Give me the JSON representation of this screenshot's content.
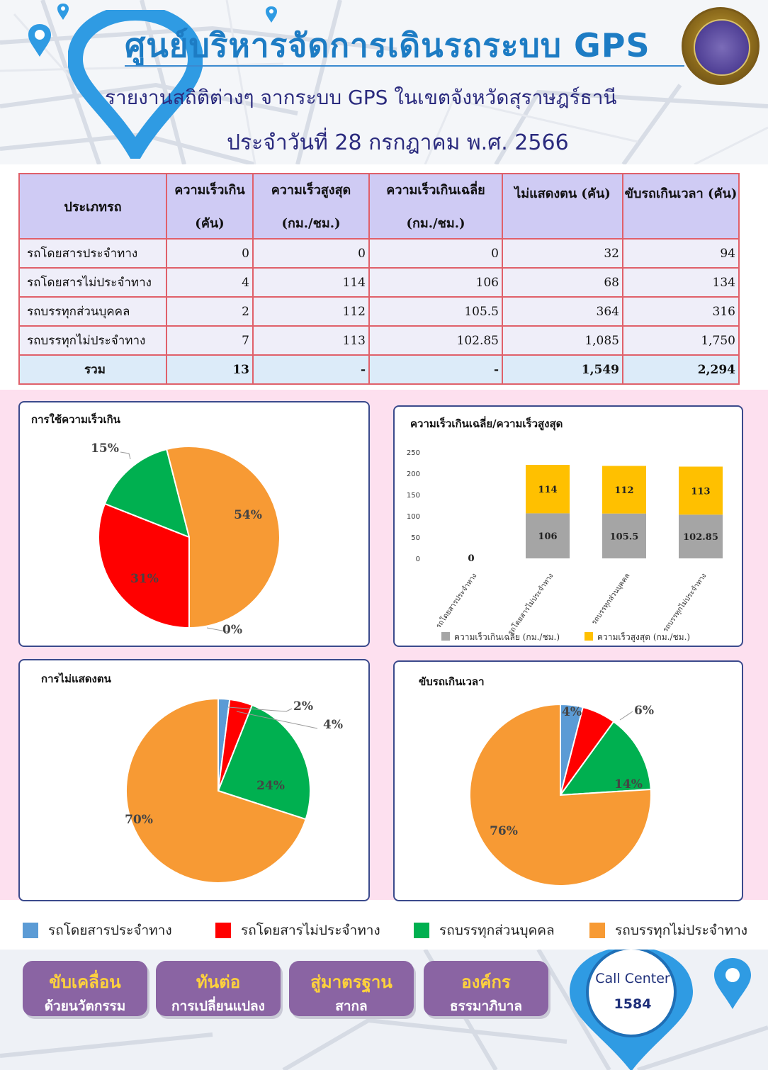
{
  "header": {
    "title": "ศูนย์บริหารจัดการเดินรถระบบ GPS",
    "subtitle": "รายงานสถิติต่างๆ จากระบบ GPS ในเขตจังหวัดสุราษฎร์ธานี",
    "date": "ประจำวันที่  28  กรกฎาคม   พ.ศ. 2566"
  },
  "table": {
    "headers": [
      {
        "l1": "ประเภทรถ",
        "l2": ""
      },
      {
        "l1": "ความเร็วเกิน",
        "l2": "(คัน)"
      },
      {
        "l1": "ความเร็วสูงสุด",
        "l2": "(กม./ชม.)"
      },
      {
        "l1": "ความเร็วเกินเฉลี่ย",
        "l2": "(กม./ชม.)"
      },
      {
        "l1": "ไม่แสดงตน (คัน)",
        "l2": ""
      },
      {
        "l1": "ขับรถเกินเวลา (คัน)",
        "l2": ""
      }
    ],
    "rows": [
      [
        "รถโดยสารประจำทาง",
        "0",
        "0",
        "0",
        "32",
        "94"
      ],
      [
        "รถโดยสารไม่ประจำทาง",
        "4",
        "114",
        "106",
        "68",
        "134"
      ],
      [
        "รถบรรทุกส่วนบุคคล",
        "2",
        "112",
        "105.5",
        "364",
        "316"
      ],
      [
        "รถบรรทุกไม่ประจำทาง",
        "7",
        "113",
        "102.85",
        "1,085",
        "1,750"
      ]
    ],
    "total": [
      "รวม",
      "13",
      "-",
      "-",
      "1,549",
      "2,294"
    ]
  },
  "colors": {
    "bus_fixed": "#5b9bd5",
    "bus_nonfixed": "#ff0000",
    "truck_private": "#00b050",
    "truck_nonfixed": "#f79a34",
    "avg_speed": "#a5a5a5",
    "max_speed": "#ffc000"
  },
  "chart_data": [
    {
      "type": "pie",
      "title": "การใช้ความเร็วเกิน",
      "labels": [
        "รถโดยสารประจำทาง",
        "รถโดยสารไม่ประจำทาง",
        "รถบรรทุกส่วนบุคคล",
        "รถบรรทุกไม่ประจำทาง"
      ],
      "values": [
        0,
        31,
        15,
        54
      ],
      "data_labels": [
        "0%",
        "31%",
        "15%",
        "54%"
      ]
    },
    {
      "type": "bar",
      "stacked": true,
      "title": "ความเร็วเกินเฉลี่ย/ความเร็วสูงสุด",
      "categories": [
        "รถโดยสารประจำทาง",
        "รถโดยสารไม่ประจำทาง",
        "รถบรรทุกส่วนบุคคล",
        "รถบรรทุกไม่ประจำทาง"
      ],
      "series": [
        {
          "name": "ความเร็วเกินเฉลี่ย (กม./ชม.)",
          "values": [
            0,
            106,
            105.5,
            102.85
          ],
          "labels": [
            "0",
            "106",
            "105.5",
            "102.85"
          ]
        },
        {
          "name": "ความเร็วสูงสุด (กม./ชม.)",
          "values": [
            0,
            114,
            112,
            113
          ],
          "labels": [
            "0",
            "114",
            "112",
            "113"
          ]
        }
      ],
      "yticks": [
        "0",
        "50",
        "100",
        "150",
        "200",
        "250"
      ],
      "ylim": [
        0,
        250
      ],
      "grid": false,
      "legend": "bottom"
    },
    {
      "type": "pie",
      "title": "การไม่แสดงตน",
      "labels": [
        "รถโดยสารประจำทาง",
        "รถโดยสารไม่ประจำทาง",
        "รถบรรทุกส่วนบุคคล",
        "รถบรรทุกไม่ประจำทาง"
      ],
      "values": [
        2,
        4,
        24,
        70
      ],
      "data_labels": [
        "2%",
        "4%",
        "24%",
        "70%"
      ]
    },
    {
      "type": "pie",
      "title": "ขับรถเกินเวลา",
      "labels": [
        "รถโดยสารประจำทาง",
        "รถโดยสารไม่ประจำทาง",
        "รถบรรทุกส่วนบุคคล",
        "รถบรรทุกไม่ประจำทาง"
      ],
      "values": [
        4,
        6,
        14,
        76
      ],
      "data_labels": [
        "4%",
        "6%",
        "14%",
        "76%"
      ]
    }
  ],
  "legend": [
    {
      "label": "รถโดยสารประจำทาง",
      "color": "#5b9bd5"
    },
    {
      "label": "รถโดยสารไม่ประจำทาง",
      "color": "#ff0000"
    },
    {
      "label": "รถบรรทุกส่วนบุคคล",
      "color": "#00b050"
    },
    {
      "label": "รถบรรทุกไม่ประจำทาง",
      "color": "#f79a34"
    }
  ],
  "footer": {
    "pills": [
      {
        "l1": "ขับเคลื่อน",
        "l2": "ด้วยนวัตกรรม"
      },
      {
        "l1": "ทันต่อ",
        "l2": "การเปลี่ยนแปลง"
      },
      {
        "l1": "สู่มาตรฐาน",
        "l2": "สากล"
      },
      {
        "l1": "องค์กร",
        "l2": "ธรรมาภิบาล"
      }
    ],
    "call_center": "Call Center",
    "call_number": "1584"
  }
}
